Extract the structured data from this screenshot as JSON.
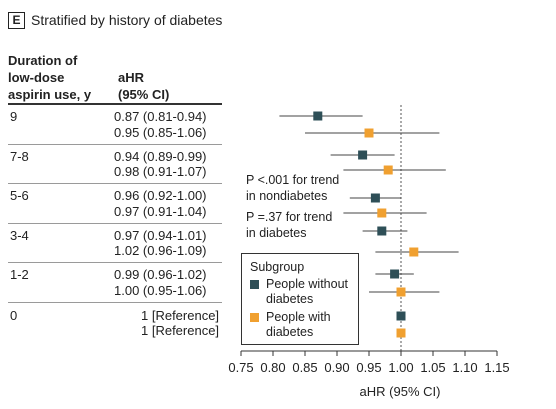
{
  "panel": {
    "letter": "E",
    "title": "Stratified by history of diabetes"
  },
  "columns": {
    "duration": [
      "Duration of",
      "low-dose",
      "aspirin use, y"
    ],
    "ahr": [
      "aHR",
      "(95% CI)"
    ]
  },
  "rows": [
    {
      "label": "9",
      "without": "0.87 (0.81-0.94)",
      "with": "0.95 (0.85-1.06)"
    },
    {
      "label": "7-8",
      "without": "0.94 (0.89-0.99)",
      "with": "0.98 (0.91-1.07)"
    },
    {
      "label": "5-6",
      "without": "0.96 (0.92-1.00)",
      "with": "0.97 (0.91-1.04)"
    },
    {
      "label": "3-4",
      "without": "0.97 (0.94-1.01)",
      "with": "1.02 (0.96-1.09)"
    },
    {
      "label": "1-2",
      "without": "0.99 (0.96-1.02)",
      "with": "1.00 (0.95-1.06)"
    },
    {
      "label": "0",
      "without": "1 [Reference]",
      "with": "1 [Reference]"
    }
  ],
  "annotations": {
    "trend_nondiabetes": [
      "P <.001 for trend",
      "in nondiabetes"
    ],
    "trend_diabetes": [
      "P =.37 for trend",
      "in diabetes"
    ]
  },
  "legend": {
    "title": "Subgroup",
    "items": [
      {
        "label": "People without diabetes",
        "color": "#2e4f57"
      },
      {
        "label": "People with diabetes",
        "color": "#f0a030"
      }
    ]
  },
  "chart_data": {
    "type": "forest",
    "title": "Stratified by history of diabetes",
    "xlabel": "aHR (95% CI)",
    "xlim": [
      0.75,
      1.15
    ],
    "xticks": [
      "0.75",
      "0.80",
      "0.85",
      "0.90",
      "0.95",
      "1.00",
      "1.05",
      "1.10",
      "1.15"
    ],
    "reference_line": 1.0,
    "categories": [
      "9",
      "7-8",
      "5-6",
      "3-4",
      "1-2",
      "0"
    ],
    "series": [
      {
        "name": "People without diabetes",
        "color": "#2e4f57",
        "estimate": [
          0.87,
          0.94,
          0.96,
          0.97,
          0.99,
          1.0
        ],
        "lower": [
          0.81,
          0.89,
          0.92,
          0.94,
          0.96,
          1.0
        ],
        "upper": [
          0.94,
          0.99,
          1.0,
          1.01,
          1.02,
          1.0
        ]
      },
      {
        "name": "People with diabetes",
        "color": "#f0a030",
        "estimate": [
          0.95,
          0.98,
          0.97,
          1.02,
          1.0,
          1.0
        ],
        "lower": [
          0.85,
          0.91,
          0.91,
          0.96,
          0.95,
          1.0
        ],
        "upper": [
          1.06,
          1.07,
          1.04,
          1.09,
          1.06,
          1.0
        ]
      }
    ]
  }
}
